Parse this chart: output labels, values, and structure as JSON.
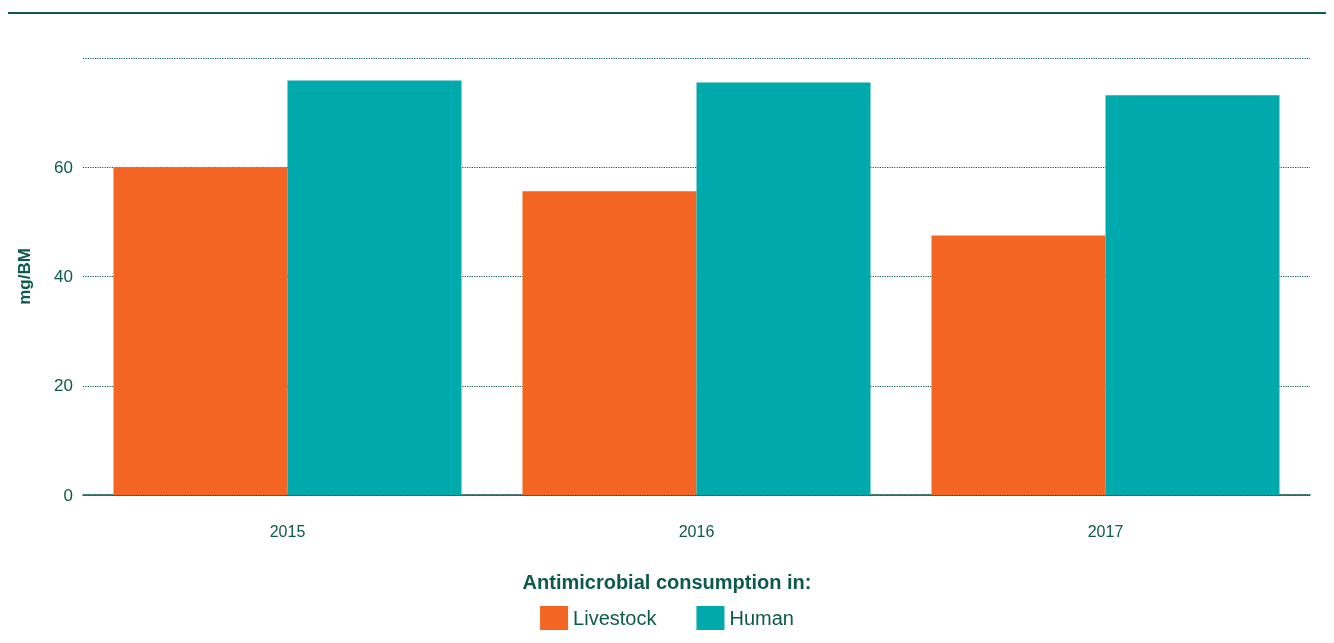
{
  "chart_data": {
    "type": "bar",
    "ylabel": "mg/BM",
    "legend_title": "Antimicrobial consumption in:",
    "categories": [
      "2015",
      "2016",
      "2017"
    ],
    "series": [
      {
        "name": "Livestock",
        "color": "#f26522",
        "values": [
          60.0,
          55.6,
          47.5
        ]
      },
      {
        "name": "Human",
        "color": "#00a9ac",
        "values": [
          75.9,
          75.5,
          73.2
        ]
      }
    ],
    "ylim": [
      0,
      80
    ],
    "yticks": [
      0,
      20,
      40,
      60,
      {
        "value": 80,
        "label": null
      }
    ],
    "grid": "y",
    "legend": "bottom"
  }
}
